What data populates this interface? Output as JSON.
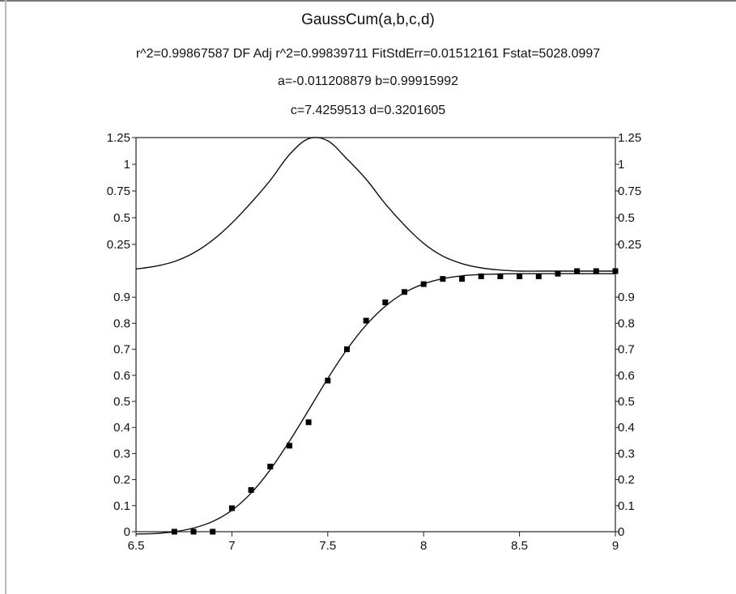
{
  "header": {
    "title": "GaussCum(a,b,c,d)",
    "stats": "r^2=0.99867587  DF Adj r^2=0.99839711  FitStdErr=0.01512161  Fstat=5028.0997",
    "params_line1": "a=-0.011208879 b=0.99915992",
    "params_line2": "c=7.4259513 d=0.3201605"
  },
  "colors": {
    "curve": "#111111",
    "points": "#000000",
    "axis": "#222222",
    "background": "#ffffff"
  },
  "chart_data": {
    "type": "scatter",
    "title": "GaussCum(a,b,c,d)",
    "xlabel": "",
    "ylabel": "",
    "xlim": [
      6.5,
      9
    ],
    "x_ticks": [
      "6.5",
      "7",
      "7.5",
      "8",
      "8.5",
      "9"
    ],
    "x_tick_values": [
      6.5,
      7,
      7.5,
      8,
      8.5,
      9
    ],
    "parameters": {
      "a": -0.011208879,
      "b": 0.99915992,
      "c": 7.4259513,
      "d": 0.3201605
    },
    "panels": [
      {
        "name": "cumulative",
        "ylim": [
          0,
          1
        ],
        "y_ticks": [
          "0",
          "0.1",
          "0.2",
          "0.3",
          "0.4",
          "0.5",
          "0.6",
          "0.7",
          "0.8",
          "0.9"
        ],
        "y_tick_values": [
          0,
          0.1,
          0.2,
          0.3,
          0.4,
          0.5,
          0.6,
          0.7,
          0.8,
          0.9
        ],
        "series": [
          {
            "kind": "points",
            "x": [
              6.7,
              6.8,
              6.9,
              7.0,
              7.1,
              7.2,
              7.3,
              7.4,
              7.5,
              7.6,
              7.7,
              7.8,
              7.9,
              8.0,
              8.1,
              8.2,
              8.3,
              8.4,
              8.5,
              8.6,
              8.7,
              8.8,
              8.9,
              9.0
            ],
            "y": [
              0.0,
              0.0,
              0.0,
              0.09,
              0.16,
              0.25,
              0.33,
              0.42,
              0.58,
              0.7,
              0.81,
              0.88,
              0.92,
              0.95,
              0.97,
              0.97,
              0.98,
              0.98,
              0.98,
              0.98,
              0.99,
              1.0,
              1.0,
              1.0
            ]
          },
          {
            "kind": "line",
            "x": [
              6.5,
              6.6,
              6.7,
              6.8,
              6.9,
              7.0,
              7.1,
              7.2,
              7.3,
              7.4,
              7.5,
              7.6,
              7.7,
              7.8,
              7.9,
              8.0,
              8.1,
              8.2,
              8.3,
              8.4,
              8.5,
              8.6,
              8.7,
              8.8,
              8.9,
              9.0
            ],
            "y": [
              -0.009,
              -0.007,
              0.0,
              0.014,
              0.039,
              0.082,
              0.148,
              0.238,
              0.347,
              0.466,
              0.588,
              0.699,
              0.793,
              0.865,
              0.917,
              0.951,
              0.971,
              0.982,
              0.987,
              0.989,
              0.99,
              0.99,
              0.99,
              0.99,
              0.99,
              0.99
            ]
          }
        ]
      },
      {
        "name": "density",
        "ylim": [
          0,
          1.25
        ],
        "y_ticks": [
          "0.25",
          "0.5",
          "0.75",
          "1",
          "1.25"
        ],
        "y_tick_values": [
          0.25,
          0.5,
          0.75,
          1,
          1.25
        ],
        "series": [
          {
            "kind": "line",
            "x": [
              6.5,
              6.6,
              6.7,
              6.8,
              6.9,
              7.0,
              7.1,
              7.2,
              7.3,
              7.4,
              7.5,
              7.6,
              7.7,
              7.8,
              7.9,
              8.0,
              8.1,
              8.2,
              8.3,
              8.4,
              8.5,
              8.6,
              8.7,
              8.8,
              8.9,
              9.0
            ],
            "y": [
              0.02,
              0.045,
              0.09,
              0.17,
              0.29,
              0.45,
              0.64,
              0.85,
              1.09,
              1.24,
              1.22,
              1.05,
              0.86,
              0.63,
              0.43,
              0.26,
              0.14,
              0.07,
              0.03,
              0.01,
              0.0,
              0.0,
              0.0,
              0.0,
              0.0,
              0.0
            ]
          }
        ]
      }
    ]
  }
}
